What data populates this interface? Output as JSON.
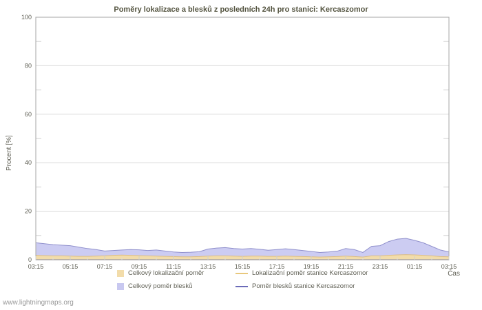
{
  "page": {
    "watermark": "www.lightningmaps.org"
  },
  "chart_data": {
    "type": "area",
    "title": "Poměry lokalizace a blesků z posledních 24h pro stanici: Kercaszomor",
    "ylabel": "Procent  [%]",
    "xlabel": "Čas",
    "ylim": [
      0,
      100
    ],
    "ytick_step": 20,
    "grid": "horizontal",
    "legend_position": "bottom",
    "x_tick_labels": [
      "03:15",
      "05:15",
      "07:15",
      "09:15",
      "11:15",
      "13:15",
      "15:15",
      "17:15",
      "19:15",
      "21:15",
      "23:15",
      "01:15",
      "03:15"
    ],
    "series": [
      {
        "name": "Celkový poměr blesků",
        "type": "area",
        "fill": "#ccccf2",
        "stroke": "#9090cc",
        "values": [
          7.0,
          6.6,
          6.2,
          6.0,
          5.8,
          5.2,
          4.6,
          4.2,
          3.6,
          3.8,
          4.0,
          4.2,
          4.1,
          3.8,
          4.0,
          3.6,
          3.2,
          3.0,
          3.1,
          3.3,
          4.4,
          4.8,
          5.0,
          4.6,
          4.4,
          4.6,
          4.3,
          3.9,
          4.2,
          4.5,
          4.2,
          3.8,
          3.4,
          3.0,
          3.2,
          3.5,
          4.6,
          4.2,
          3.0,
          5.5,
          5.8,
          7.5,
          8.5,
          8.8,
          8.0,
          7.0,
          5.5,
          4.0,
          3.2
        ]
      },
      {
        "name": "Celkový lokalizační poměr",
        "type": "area",
        "fill": "#f2dcaa",
        "stroke": "#ddbe84",
        "values": [
          1.8,
          1.7,
          1.6,
          1.6,
          1.5,
          1.4,
          1.4,
          1.5,
          1.6,
          1.8,
          1.9,
          1.8,
          1.7,
          1.6,
          1.5,
          1.4,
          1.3,
          1.2,
          1.2,
          1.3,
          1.5,
          1.6,
          1.6,
          1.5,
          1.4,
          1.5,
          1.5,
          1.4,
          1.4,
          1.5,
          1.4,
          1.3,
          1.2,
          1.1,
          1.2,
          1.3,
          1.5,
          1.3,
          1.1,
          1.6,
          1.6,
          1.8,
          2.0,
          2.1,
          2.0,
          1.8,
          1.6,
          1.3,
          1.2
        ]
      },
      {
        "name": "Lokalizační poměr stanice Kercaszomor",
        "type": "line",
        "stroke": "#e8c87c",
        "values": [
          0,
          0,
          0,
          0,
          0,
          0,
          0,
          0,
          0,
          0,
          0,
          0,
          0,
          0,
          0,
          0,
          0,
          0,
          0,
          0,
          0,
          0,
          0,
          0,
          0,
          0,
          0,
          0,
          0,
          0,
          0,
          0,
          0,
          0,
          0,
          0,
          0,
          0,
          0,
          0,
          0,
          0,
          0,
          0,
          0,
          0,
          0,
          0,
          0
        ]
      },
      {
        "name": "Poměr blesků stanice Kercaszomor",
        "type": "line",
        "stroke": "#6b6bb8",
        "values": [
          0,
          0,
          0,
          0,
          0,
          0,
          0,
          0,
          0,
          0,
          0,
          0,
          0,
          0,
          0,
          0,
          0,
          0,
          0,
          0,
          0,
          0,
          0,
          0,
          0,
          0,
          0,
          0,
          0,
          0,
          0,
          0,
          0,
          0,
          0,
          0,
          0,
          0,
          0,
          0,
          0,
          0,
          0,
          0,
          0,
          0,
          0,
          0,
          0
        ]
      }
    ],
    "legend": [
      {
        "label": "Celkový lokalizační poměr",
        "swatch": "square",
        "color": "#f2dcaa"
      },
      {
        "label": "Lokalizační poměr stanice Kercaszomor",
        "swatch": "line",
        "color": "#e8c87c"
      },
      {
        "label": "Celkový poměr blesků",
        "swatch": "square",
        "color": "#c8c8f0"
      },
      {
        "label": "Poměr blesků stanice Kercaszomor",
        "swatch": "line",
        "color": "#6b6bb8"
      }
    ]
  }
}
